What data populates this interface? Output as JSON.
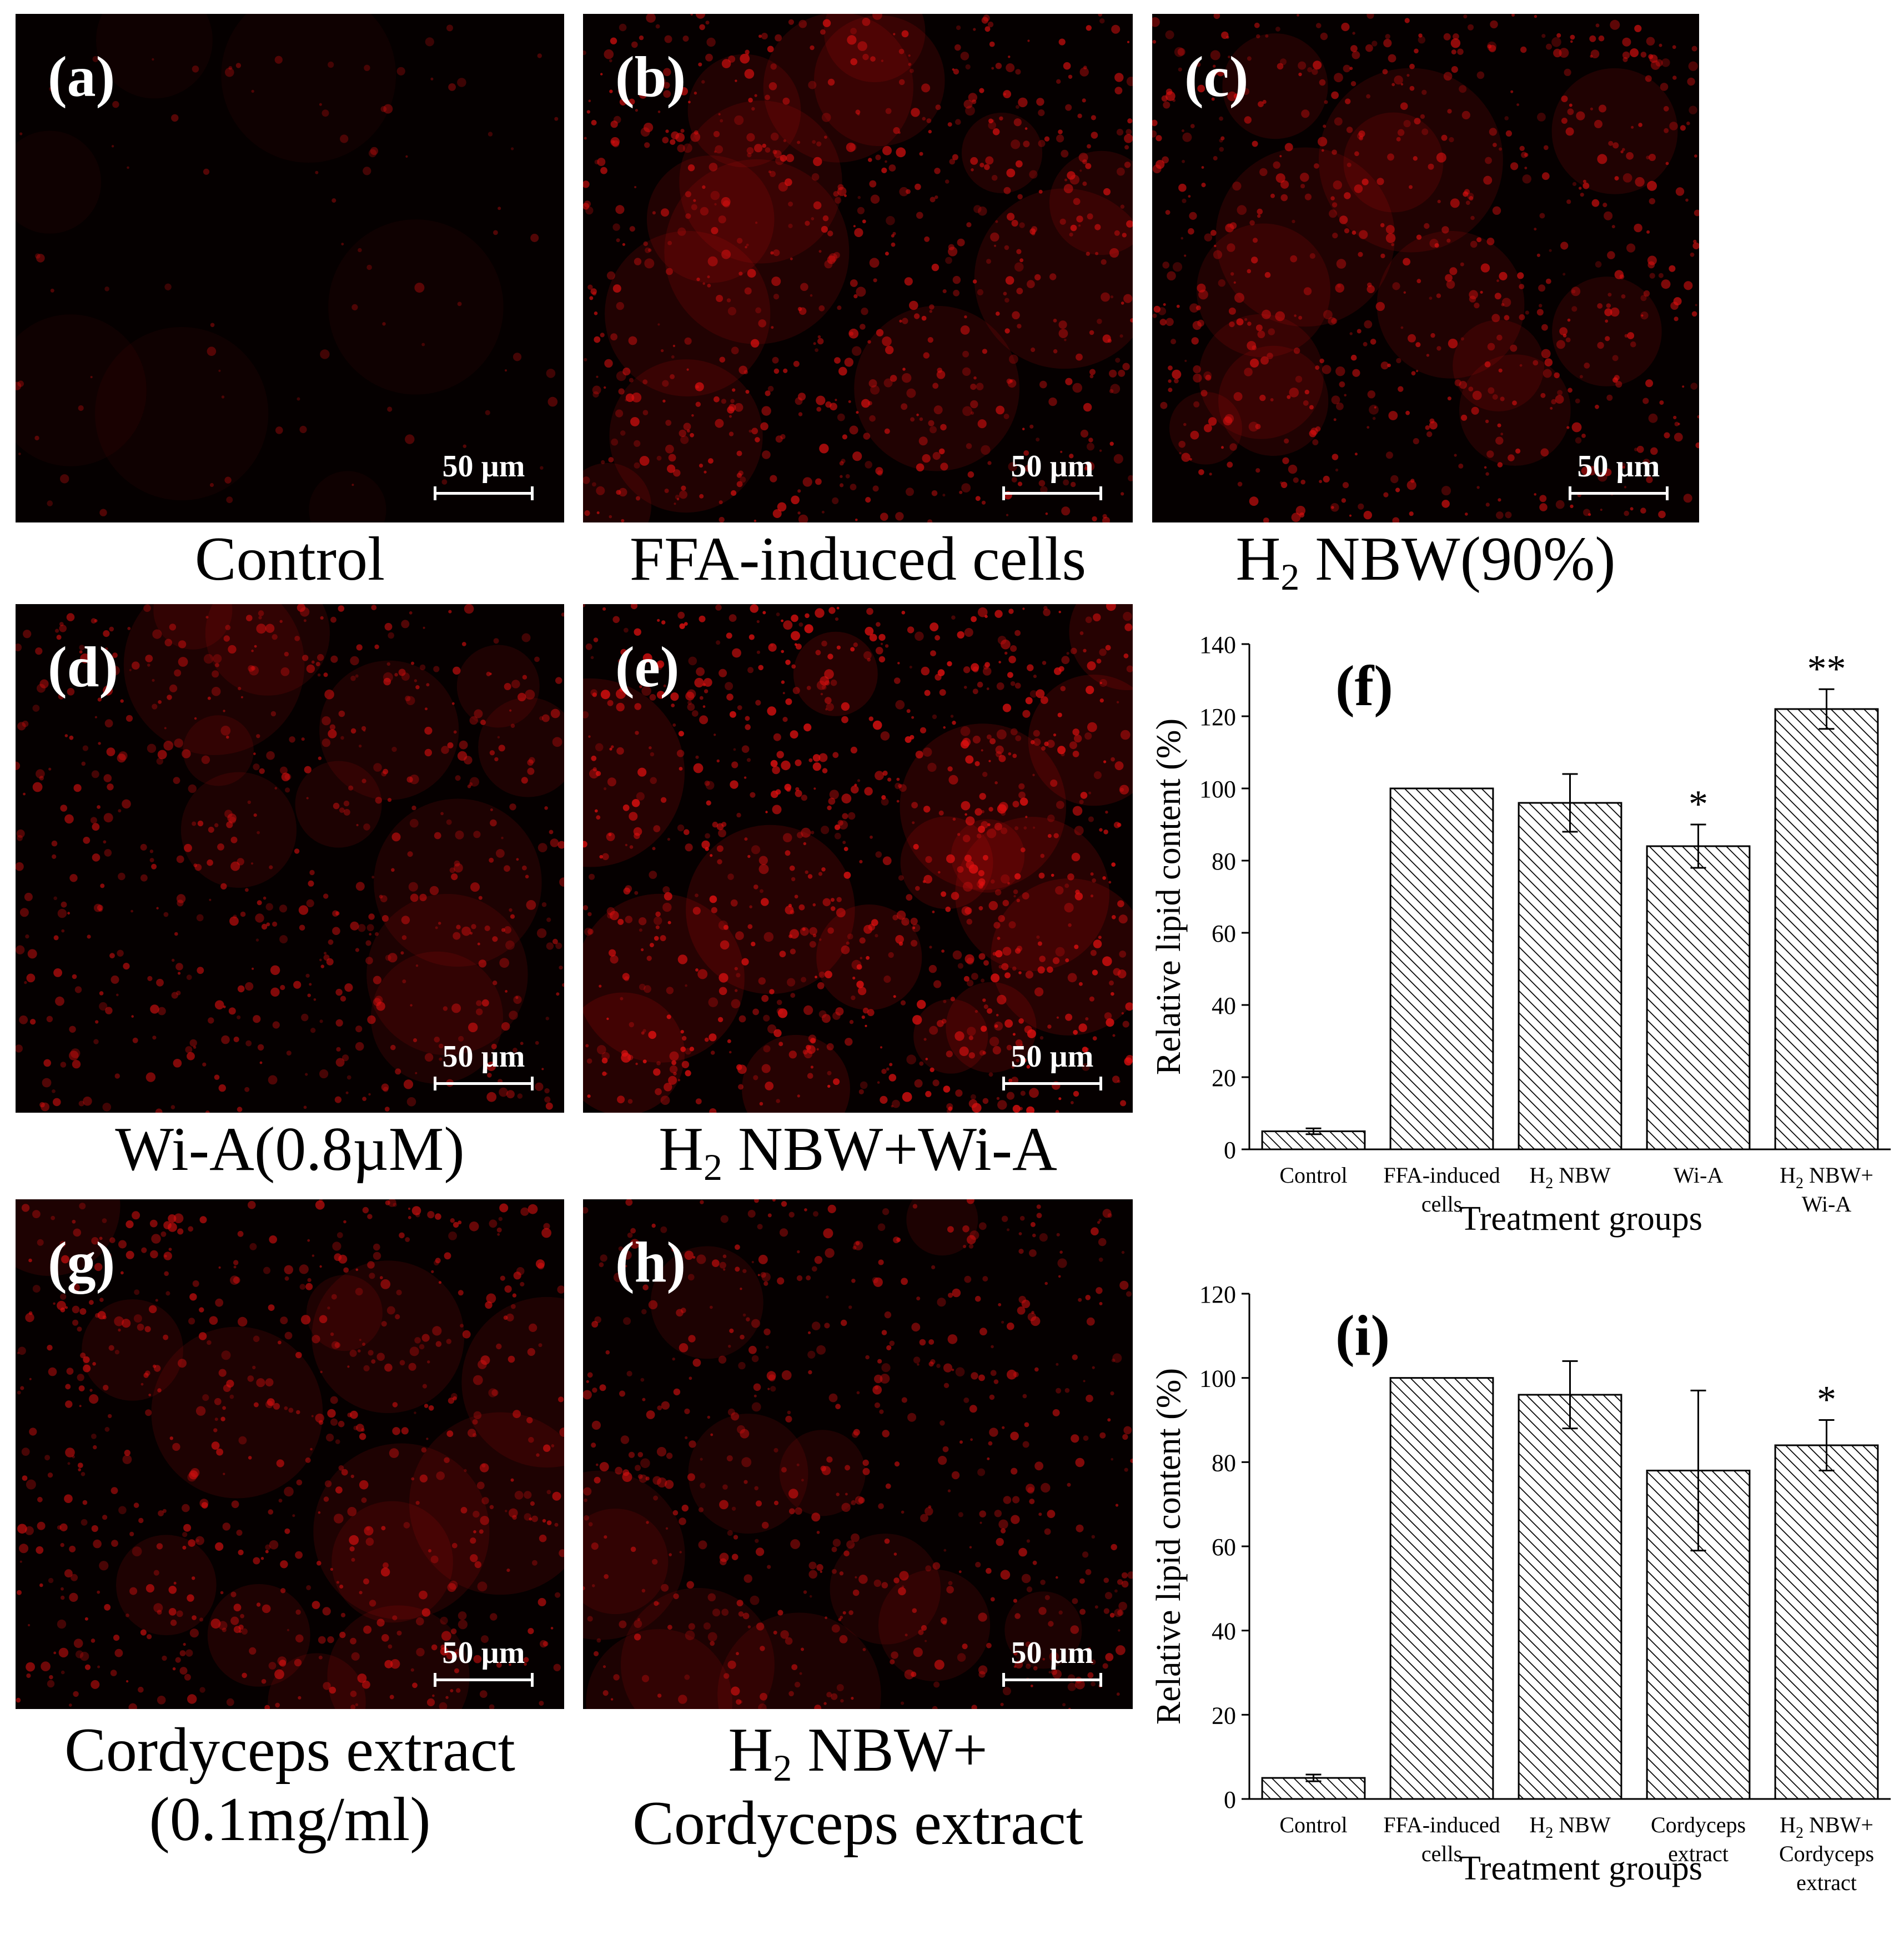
{
  "panels": [
    {
      "id": "a",
      "label": "(a)",
      "scale": "50 µm",
      "caption_main": "Control",
      "intensity": 0.05
    },
    {
      "id": "b",
      "label": "(b)",
      "scale": "50 µm",
      "caption_main": "FFA-induced cells",
      "intensity": 0.75
    },
    {
      "id": "c",
      "label": "(c)",
      "scale": "50 µm",
      "caption_pre": "H",
      "caption_sub": "2",
      "caption_main": " NBW(90%)",
      "intensity": 0.7
    },
    {
      "id": "d",
      "label": "(d)",
      "scale": "50 µm",
      "caption_main": "Wi-A(0.8µM)",
      "intensity": 0.6
    },
    {
      "id": "e",
      "label": "(e)",
      "scale": "50 µm",
      "caption_pre": "H",
      "caption_sub": "2",
      "caption_main": " NBW+Wi-A",
      "intensity": 0.95
    },
    {
      "id": "g",
      "label": "(g)",
      "scale": "50 µm",
      "caption_main": "Cordyceps extract",
      "caption_line2": "(0.1mg/ml)",
      "intensity": 0.65
    },
    {
      "id": "h",
      "label": "(h)",
      "scale": "50 µm",
      "caption_pre": "H",
      "caption_sub": "2",
      "caption_main": " NBW+",
      "caption_line2": "Cordyceps extract",
      "intensity": 0.6
    }
  ],
  "chart_data": [
    {
      "panel_label": "(f)",
      "type": "bar",
      "xlabel": "Treatment groups",
      "ylabel": "Relative lipid content (%)",
      "ylim": [
        0,
        140
      ],
      "yticks": [
        0,
        20,
        40,
        60,
        80,
        100,
        120,
        140
      ],
      "categories": [
        {
          "line1": "Control",
          "line2": ""
        },
        {
          "line1": "FFA-induced",
          "line2": "cells"
        },
        {
          "line1": "H2 NBW",
          "line2": ""
        },
        {
          "line1": "Wi-A",
          "line2": ""
        },
        {
          "line1": "H2 NBW+",
          "line2": "Wi-A"
        }
      ],
      "values": [
        5,
        100,
        96,
        84,
        122
      ],
      "errors": [
        0.8,
        0,
        8,
        6,
        5.5
      ],
      "significance": [
        "",
        "",
        "",
        "*",
        "**"
      ]
    },
    {
      "panel_label": "(i)",
      "type": "bar",
      "xlabel": "Treatment groups",
      "ylabel": "Relative lipid content (%)",
      "ylim": [
        0,
        120
      ],
      "yticks": [
        0,
        20,
        40,
        60,
        80,
        100,
        120
      ],
      "categories": [
        {
          "line1": "Control",
          "line2": ""
        },
        {
          "line1": "FFA-induced",
          "line2": "cells"
        },
        {
          "line1": "H2 NBW",
          "line2": ""
        },
        {
          "line1": "Cordyceps",
          "line2": "extract"
        },
        {
          "line1": "H2 NBW+",
          "line2": "Cordyceps",
          "line3": "extract"
        }
      ],
      "values": [
        5,
        100,
        96,
        78,
        84
      ],
      "errors": [
        0.8,
        0,
        8,
        19,
        6
      ],
      "significance": [
        "",
        "",
        "",
        "",
        "*"
      ]
    }
  ],
  "colors": {
    "fluorescence": "#e01010",
    "background": "#050000",
    "bar_hatch": "#000000"
  }
}
